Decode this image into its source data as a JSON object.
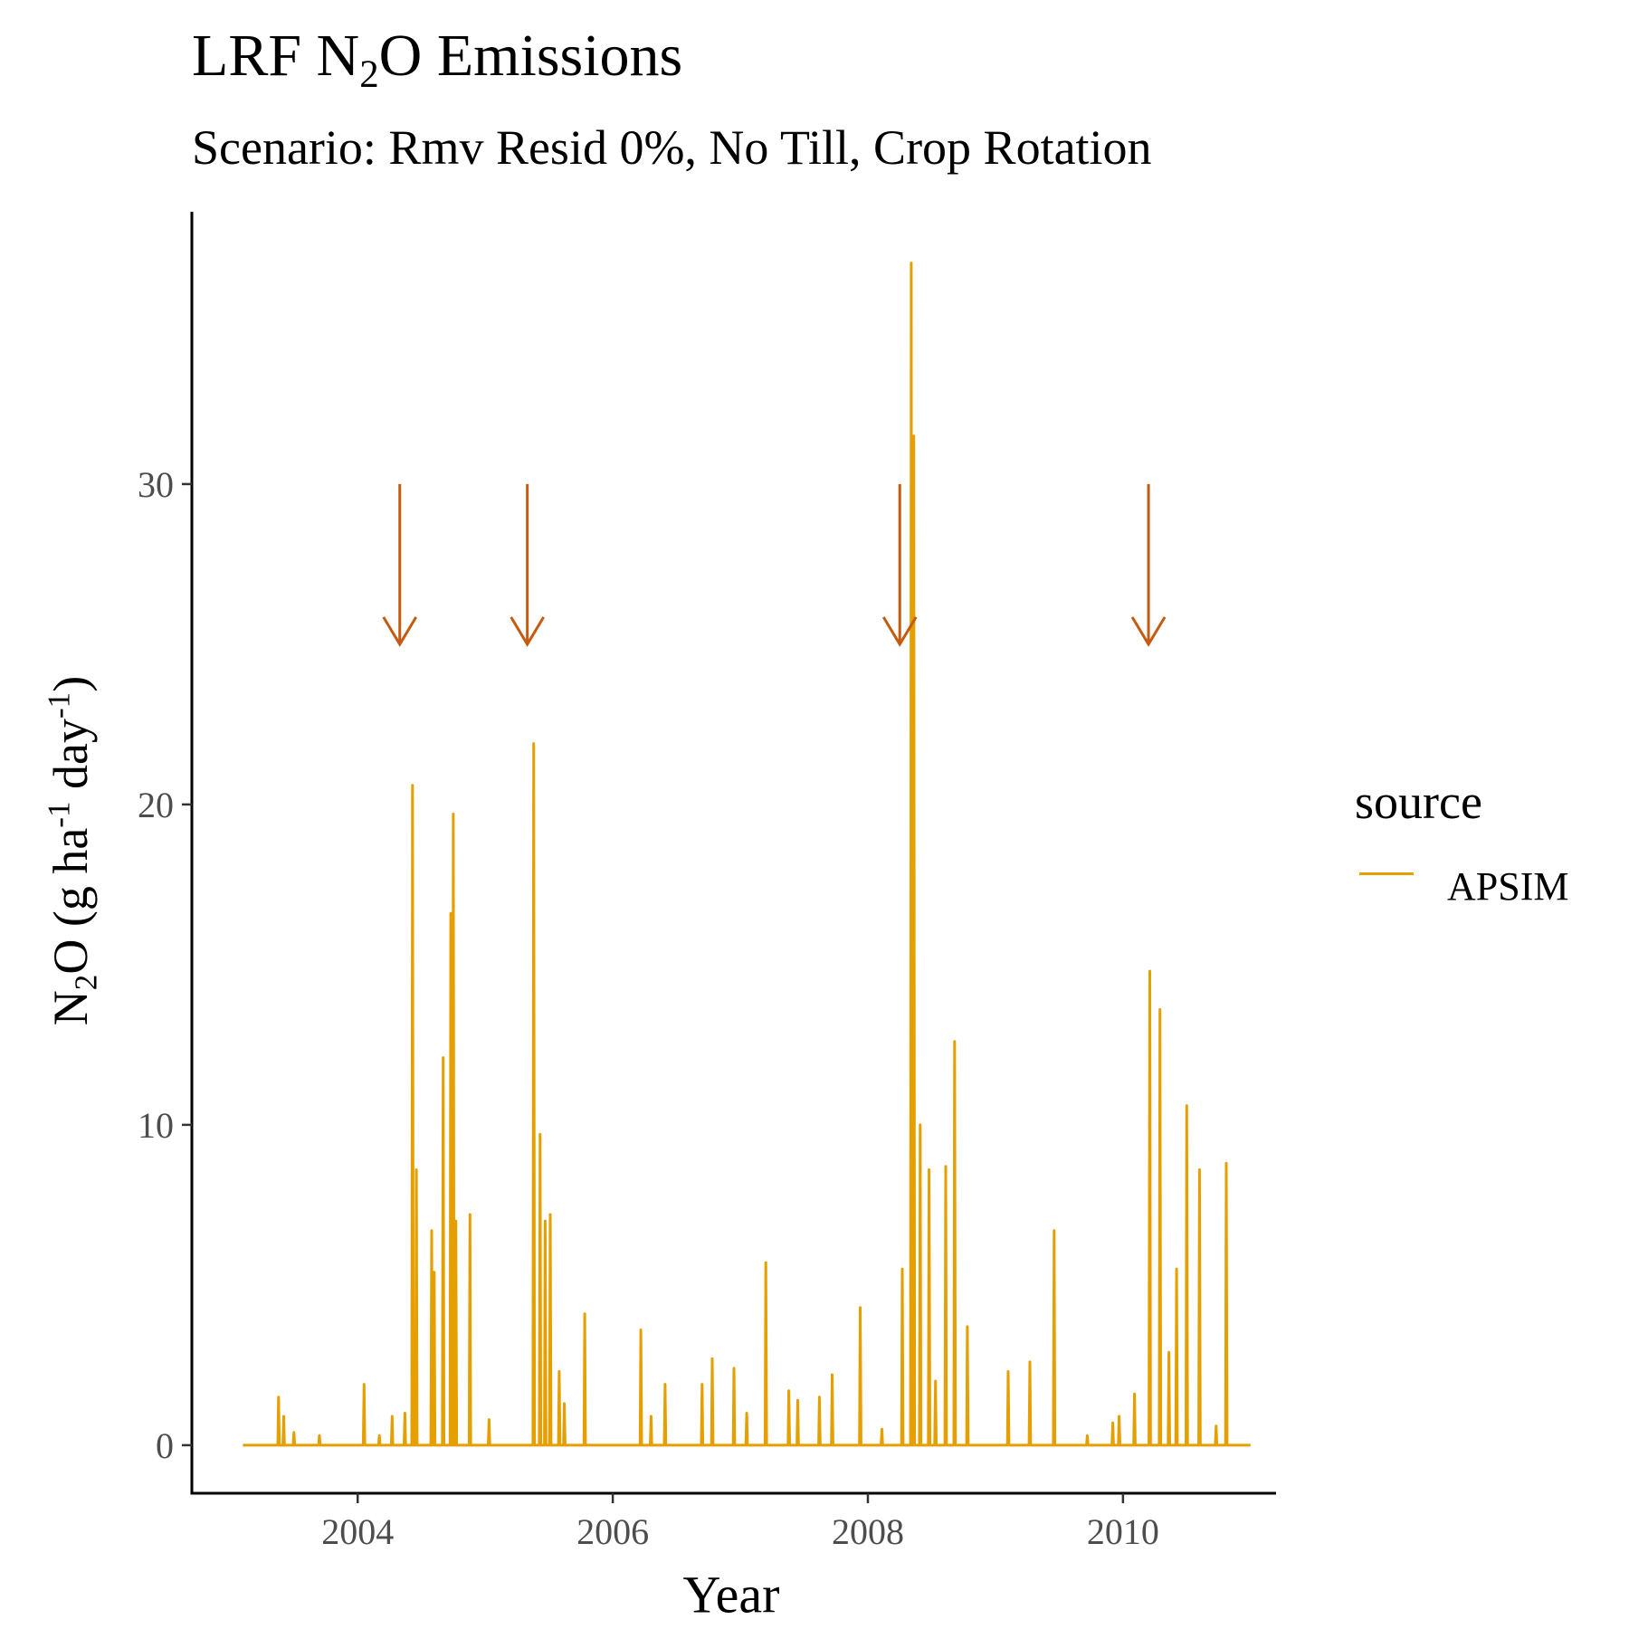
{
  "chart_data": {
    "type": "line",
    "title": {
      "prefix": "LRF N",
      "sub": "2",
      "suffix": "O Emissions"
    },
    "subtitle": "Scenario: Rmv Resid 0%, No Till, Crop Rotation",
    "xlabel": "Year",
    "ylabel": {
      "p1": "N",
      "s1": "2",
      "p2": "O (g ha",
      "s2": "-1",
      "p3": " day",
      "s3": "-1",
      "p4": ")"
    },
    "xlim": [
      2002.7,
      2011.2
    ],
    "ylim": [
      -1.5,
      38.5
    ],
    "x_ticks": [
      2004,
      2006,
      2008,
      2010
    ],
    "x_tick_labels": [
      "2004",
      "2006",
      "2008",
      "2010"
    ],
    "y_ticks": [
      0,
      10,
      20,
      30
    ],
    "y_tick_labels": [
      "0",
      "10",
      "20",
      "30"
    ],
    "grid": false,
    "legend": {
      "title": "source",
      "position": "right"
    },
    "series": [
      {
        "name": "APSIM",
        "color": "#E69F00",
        "baseline": 0,
        "x_start": 2003.1,
        "x_end": 2011.0,
        "peaks": [
          [
            2003.38,
            1.5
          ],
          [
            2003.42,
            0.9
          ],
          [
            2003.5,
            0.4
          ],
          [
            2003.7,
            0.3
          ],
          [
            2004.05,
            1.9
          ],
          [
            2004.17,
            0.3
          ],
          [
            2004.27,
            0.9
          ],
          [
            2004.37,
            1.0
          ],
          [
            2004.43,
            20.6
          ],
          [
            2004.46,
            8.6
          ],
          [
            2004.58,
            6.7
          ],
          [
            2004.6,
            5.4
          ],
          [
            2004.67,
            12.1
          ],
          [
            2004.73,
            16.6
          ],
          [
            2004.75,
            19.7
          ],
          [
            2004.77,
            7.0
          ],
          [
            2004.88,
            7.2
          ],
          [
            2005.03,
            0.8
          ],
          [
            2005.38,
            21.9
          ],
          [
            2005.43,
            9.7
          ],
          [
            2005.47,
            7.0
          ],
          [
            2005.51,
            7.2
          ],
          [
            2005.58,
            2.3
          ],
          [
            2005.62,
            1.3
          ],
          [
            2005.78,
            4.1
          ],
          [
            2006.22,
            3.6
          ],
          [
            2006.3,
            0.9
          ],
          [
            2006.41,
            1.9
          ],
          [
            2006.7,
            1.9
          ],
          [
            2006.78,
            2.7
          ],
          [
            2006.95,
            2.4
          ],
          [
            2007.05,
            1.0
          ],
          [
            2007.2,
            5.7
          ],
          [
            2007.38,
            1.7
          ],
          [
            2007.45,
            1.4
          ],
          [
            2007.62,
            1.5
          ],
          [
            2007.72,
            2.2
          ],
          [
            2007.94,
            4.3
          ],
          [
            2008.11,
            0.5
          ],
          [
            2008.27,
            5.5
          ],
          [
            2008.34,
            36.9
          ],
          [
            2008.36,
            31.5
          ],
          [
            2008.41,
            10.0
          ],
          [
            2008.48,
            8.6
          ],
          [
            2008.53,
            2.0
          ],
          [
            2008.61,
            8.7
          ],
          [
            2008.68,
            12.6
          ],
          [
            2008.78,
            3.7
          ],
          [
            2009.1,
            2.3
          ],
          [
            2009.27,
            2.6
          ],
          [
            2009.46,
            6.7
          ],
          [
            2009.72,
            0.3
          ],
          [
            2009.92,
            0.7
          ],
          [
            2009.97,
            0.9
          ],
          [
            2010.09,
            1.6
          ],
          [
            2010.21,
            14.8
          ],
          [
            2010.29,
            13.6
          ],
          [
            2010.36,
            2.9
          ],
          [
            2010.42,
            5.5
          ],
          [
            2010.5,
            10.6
          ],
          [
            2010.6,
            8.6
          ],
          [
            2010.73,
            0.6
          ],
          [
            2010.81,
            8.8
          ]
        ]
      }
    ],
    "annotations": [
      {
        "type": "arrow",
        "x": 2004.33,
        "y_start": 30,
        "y_end": 25,
        "color": "#C55A11"
      },
      {
        "type": "arrow",
        "x": 2005.33,
        "y_start": 30,
        "y_end": 25,
        "color": "#C55A11"
      },
      {
        "type": "arrow",
        "x": 2008.25,
        "y_start": 30,
        "y_end": 25,
        "color": "#C55A11"
      },
      {
        "type": "arrow",
        "x": 2010.2,
        "y_start": 30,
        "y_end": 25,
        "color": "#C55A11"
      }
    ]
  }
}
